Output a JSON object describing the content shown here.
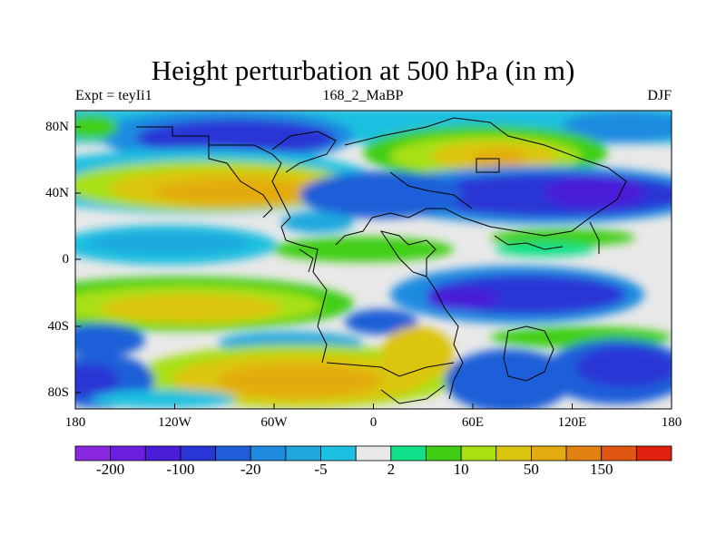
{
  "title": "Height perturbation at 500 hPa (in m)",
  "subtitle": {
    "left": "Expt = teyIi1",
    "center": "168_2_MaBP",
    "right": "DJF"
  },
  "axes": {
    "y_ticks": [
      "80N",
      "40N",
      "0",
      "40S",
      "80S"
    ],
    "x_ticks": [
      "180",
      "120W",
      "60W",
      "0",
      "60E",
      "120E",
      "180"
    ]
  },
  "colorbar": {
    "colors": [
      "#8a28e0",
      "#6d1fe0",
      "#4a1ed8",
      "#2a35d6",
      "#1f5ed8",
      "#1f8be0",
      "#1fa8dd",
      "#1cc0e0",
      "#e8e8e8",
      "#10e08a",
      "#41cf15",
      "#a8e012",
      "#dcc511",
      "#e2ab0f",
      "#e28010",
      "#e05510",
      "#e0200e"
    ],
    "labels": [
      "-200",
      "-100",
      "-20",
      "-5",
      "2",
      "10",
      "50",
      "150"
    ]
  }
}
